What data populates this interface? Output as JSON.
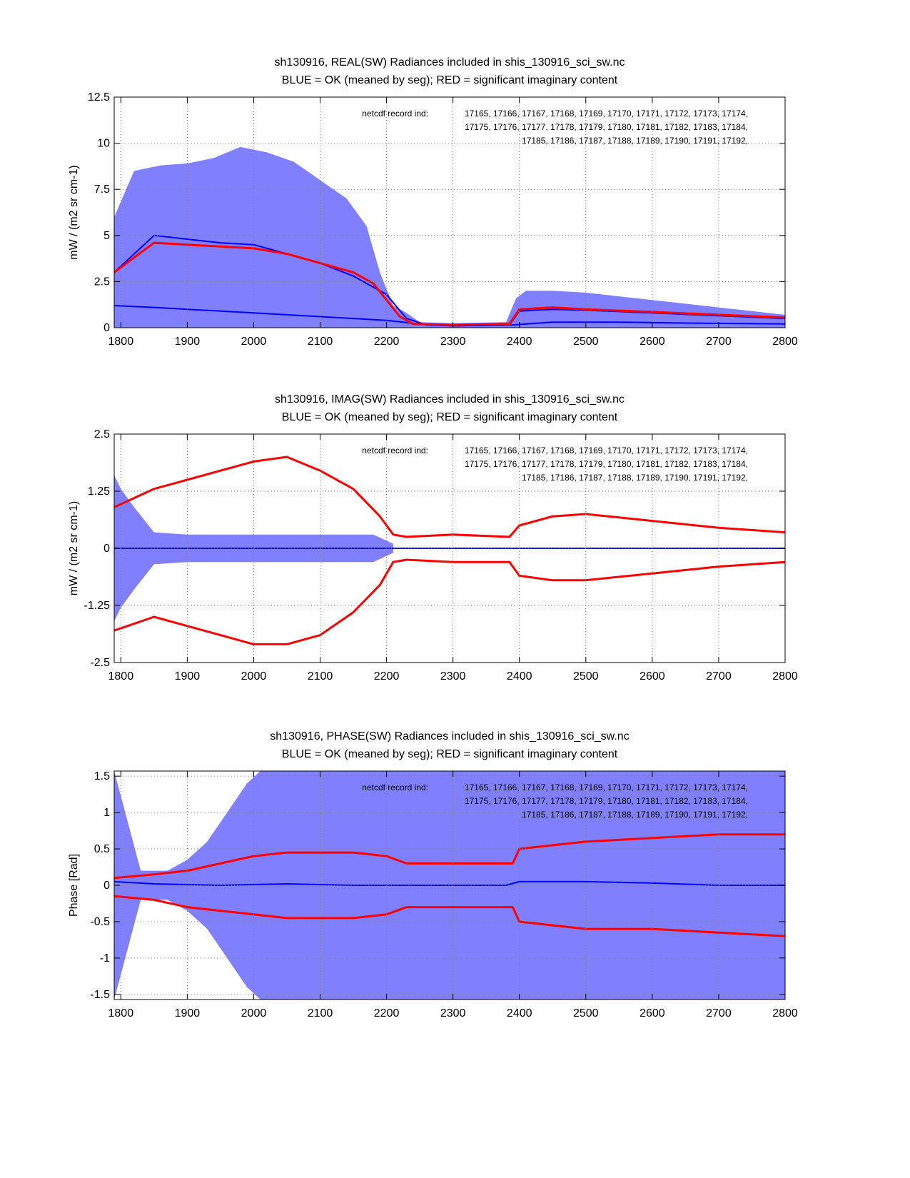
{
  "colors": {
    "ok_fill": "#8080ff",
    "ok_line": "#0000ff",
    "bad_line": "#ff0000",
    "grid": "#808080",
    "axis": "#000000"
  },
  "annotation": {
    "prefix": "netcdf record ind:",
    "lines": [
      "17165, 17166, 17167, 17168, 17169, 17170, 17171, 17172, 17173, 17174,",
      "17175, 17176, 17177, 17178, 17179, 17180, 17181, 17182, 17183, 17184,",
      "17185, 17186, 17187, 17188, 17189, 17190, 17191, 17192,"
    ]
  },
  "chart_data": [
    {
      "type": "line",
      "title": "sh130916, REAL(SW) Radiances included in shis_130916_sci_sw.nc",
      "subtitle": "BLUE = OK (meaned by seg); RED = significant imaginary content",
      "ylabel": "mW / (m2 sr cm-1)",
      "xlabel": "",
      "xlim": [
        1790,
        2800
      ],
      "ylim": [
        0,
        12.5
      ],
      "xticks": [
        1800,
        1900,
        2000,
        2100,
        2200,
        2300,
        2400,
        2500,
        2600,
        2700,
        2800
      ],
      "yticks": [
        0,
        2.5,
        5,
        7.5,
        10,
        12.5
      ],
      "yticklabels": [
        "0",
        "2.5",
        "5",
        "7.5",
        "10",
        "12.5"
      ],
      "grid": true,
      "series": [
        {
          "name": "OK envelope (max)",
          "color": "blue-fill",
          "x": [
            1790,
            1820,
            1860,
            1900,
            1940,
            1980,
            2020,
            2060,
            2100,
            2140,
            2170,
            2190,
            2210,
            2230,
            2250,
            2300,
            2380,
            2395,
            2410,
            2450,
            2500,
            2550,
            2600,
            2650,
            2700,
            2750,
            2800
          ],
          "y": [
            6.0,
            8.5,
            8.8,
            8.9,
            9.2,
            9.8,
            9.5,
            9.0,
            8.0,
            7.0,
            5.5,
            3.0,
            1.2,
            0.8,
            0.3,
            0.25,
            0.3,
            1.6,
            2.0,
            2.0,
            1.9,
            1.7,
            1.5,
            1.3,
            1.1,
            0.9,
            0.7
          ]
        },
        {
          "name": "OK mean (upper)",
          "color": "blue",
          "x": [
            1790,
            1850,
            1900,
            1950,
            2000,
            2050,
            2100,
            2150,
            2200,
            2230,
            2260,
            2300,
            2385,
            2400,
            2450,
            2500,
            2600,
            2700,
            2800
          ],
          "y": [
            3.0,
            5.0,
            4.8,
            4.6,
            4.5,
            4.0,
            3.5,
            2.8,
            1.8,
            0.5,
            0.15,
            0.1,
            0.15,
            0.9,
            1.0,
            0.95,
            0.8,
            0.65,
            0.5
          ]
        },
        {
          "name": "OK mean (lower)",
          "color": "blue",
          "x": [
            1790,
            1850,
            1900,
            1950,
            2000,
            2050,
            2100,
            2150,
            2200,
            2250,
            2300,
            2390,
            2450,
            2550,
            2650,
            2800
          ],
          "y": [
            1.2,
            1.1,
            1.0,
            0.9,
            0.8,
            0.7,
            0.6,
            0.5,
            0.4,
            0.2,
            0.1,
            0.15,
            0.3,
            0.3,
            0.25,
            0.2
          ]
        },
        {
          "name": "Significant imaginary",
          "color": "red",
          "x": [
            1790,
            1850,
            1900,
            1950,
            2000,
            2050,
            2100,
            2150,
            2180,
            2200,
            2220,
            2240,
            2300,
            2385,
            2400,
            2450,
            2500,
            2600,
            2700,
            2800
          ],
          "y": [
            3.0,
            4.6,
            4.5,
            4.4,
            4.3,
            4.0,
            3.5,
            3.0,
            2.4,
            1.5,
            0.6,
            0.2,
            0.15,
            0.2,
            1.0,
            1.1,
            1.0,
            0.85,
            0.7,
            0.55
          ]
        }
      ]
    },
    {
      "type": "line",
      "title": "sh130916, IMAG(SW) Radiances included in shis_130916_sci_sw.nc",
      "subtitle": "BLUE = OK (meaned by seg); RED = significant imaginary content",
      "ylabel": "mW / (m2 sr cm-1)",
      "xlabel": "",
      "xlim": [
        1790,
        2800
      ],
      "ylim": [
        -2.5,
        2.5
      ],
      "xticks": [
        1800,
        1900,
        2000,
        2100,
        2200,
        2300,
        2400,
        2500,
        2600,
        2700,
        2800
      ],
      "yticks": [
        -2.5,
        -1.25,
        0,
        1.25,
        2.5
      ],
      "yticklabels": [
        "-2.5",
        "-1.25",
        "0",
        "1.25",
        "2.5"
      ],
      "grid": true,
      "series": [
        {
          "name": "OK envelope (max)",
          "color": "blue-fill",
          "x": [
            1790,
            1800,
            1820,
            1850,
            1900,
            1950,
            2000,
            2100,
            2180,
            2210
          ],
          "y": [
            1.6,
            1.3,
            0.9,
            0.35,
            0.3,
            0.3,
            0.3,
            0.3,
            0.3,
            0.1
          ]
        },
        {
          "name": "OK mean",
          "color": "blue",
          "x": [
            1790,
            2800
          ],
          "y": [
            0.0,
            0.0
          ]
        },
        {
          "name": "Significant imaginary (upper)",
          "color": "red",
          "x": [
            1790,
            1850,
            1900,
            1950,
            2000,
            2050,
            2100,
            2150,
            2190,
            2210,
            2230,
            2300,
            2385,
            2400,
            2450,
            2500,
            2600,
            2700,
            2800
          ],
          "y": [
            0.9,
            1.3,
            1.5,
            1.7,
            1.9,
            2.0,
            1.7,
            1.3,
            0.7,
            0.3,
            0.25,
            0.3,
            0.25,
            0.5,
            0.7,
            0.75,
            0.6,
            0.45,
            0.35
          ]
        },
        {
          "name": "Significant imaginary (lower)",
          "color": "red",
          "x": [
            1790,
            1850,
            1900,
            1950,
            2000,
            2050,
            2100,
            2150,
            2190,
            2210,
            2230,
            2300,
            2385,
            2400,
            2450,
            2500,
            2600,
            2700,
            2800
          ],
          "y": [
            -1.8,
            -1.5,
            -1.7,
            -1.9,
            -2.1,
            -2.1,
            -1.9,
            -1.4,
            -0.8,
            -0.3,
            -0.25,
            -0.3,
            -0.3,
            -0.6,
            -0.7,
            -0.7,
            -0.55,
            -0.4,
            -0.3
          ]
        }
      ]
    },
    {
      "type": "line",
      "title": "sh130916, PHASE(SW) Radiances included in shis_130916_sci_sw.nc",
      "subtitle": "BLUE = OK (meaned by seg); RED = significant imaginary content",
      "ylabel": "Phase [Rad]",
      "xlabel": "",
      "xlim": [
        1790,
        2800
      ],
      "ylim": [
        -1.57,
        1.57
      ],
      "xticks": [
        1800,
        1900,
        2000,
        2100,
        2200,
        2300,
        2400,
        2500,
        2600,
        2700,
        2800
      ],
      "yticks": [
        -1.5,
        -1,
        -0.5,
        0,
        0.5,
        1,
        1.5
      ],
      "yticklabels": [
        "-1.5",
        "-1",
        "-0.5",
        "0",
        "0.5",
        "1",
        "1.5"
      ],
      "grid": true,
      "series": [
        {
          "name": "OK envelope (max)",
          "color": "blue-fill",
          "x": [
            1790,
            1830,
            1870,
            1900,
            1930,
            1960,
            1990,
            2010,
            2800
          ],
          "y": [
            1.57,
            0.2,
            0.2,
            0.35,
            0.6,
            1.0,
            1.4,
            1.57,
            1.57
          ]
        },
        {
          "name": "OK mean",
          "color": "blue",
          "x": [
            1790,
            1850,
            1950,
            2050,
            2150,
            2230,
            2240,
            2380,
            2400,
            2500,
            2600,
            2700,
            2800
          ],
          "y": [
            0.05,
            0.02,
            0.0,
            0.02,
            0.0,
            0.0,
            0.0,
            0.0,
            0.05,
            0.05,
            0.03,
            0.0,
            0.0
          ]
        },
        {
          "name": "Significant imaginary (upper)",
          "color": "red",
          "x": [
            1790,
            1850,
            1900,
            1950,
            2000,
            2050,
            2100,
            2150,
            2200,
            2230,
            2390,
            2400,
            2450,
            2500,
            2600,
            2700,
            2800
          ],
          "y": [
            0.1,
            0.15,
            0.2,
            0.3,
            0.4,
            0.45,
            0.45,
            0.45,
            0.4,
            0.3,
            0.3,
            0.5,
            0.55,
            0.6,
            0.65,
            0.7,
            0.7
          ]
        },
        {
          "name": "Significant imaginary (lower)",
          "color": "red",
          "x": [
            1790,
            1850,
            1900,
            1950,
            2000,
            2050,
            2100,
            2150,
            2200,
            2230,
            2390,
            2400,
            2450,
            2500,
            2600,
            2700,
            2800
          ],
          "y": [
            -0.15,
            -0.2,
            -0.3,
            -0.35,
            -0.4,
            -0.45,
            -0.45,
            -0.45,
            -0.4,
            -0.3,
            -0.3,
            -0.5,
            -0.55,
            -0.6,
            -0.6,
            -0.65,
            -0.7
          ]
        }
      ]
    }
  ]
}
